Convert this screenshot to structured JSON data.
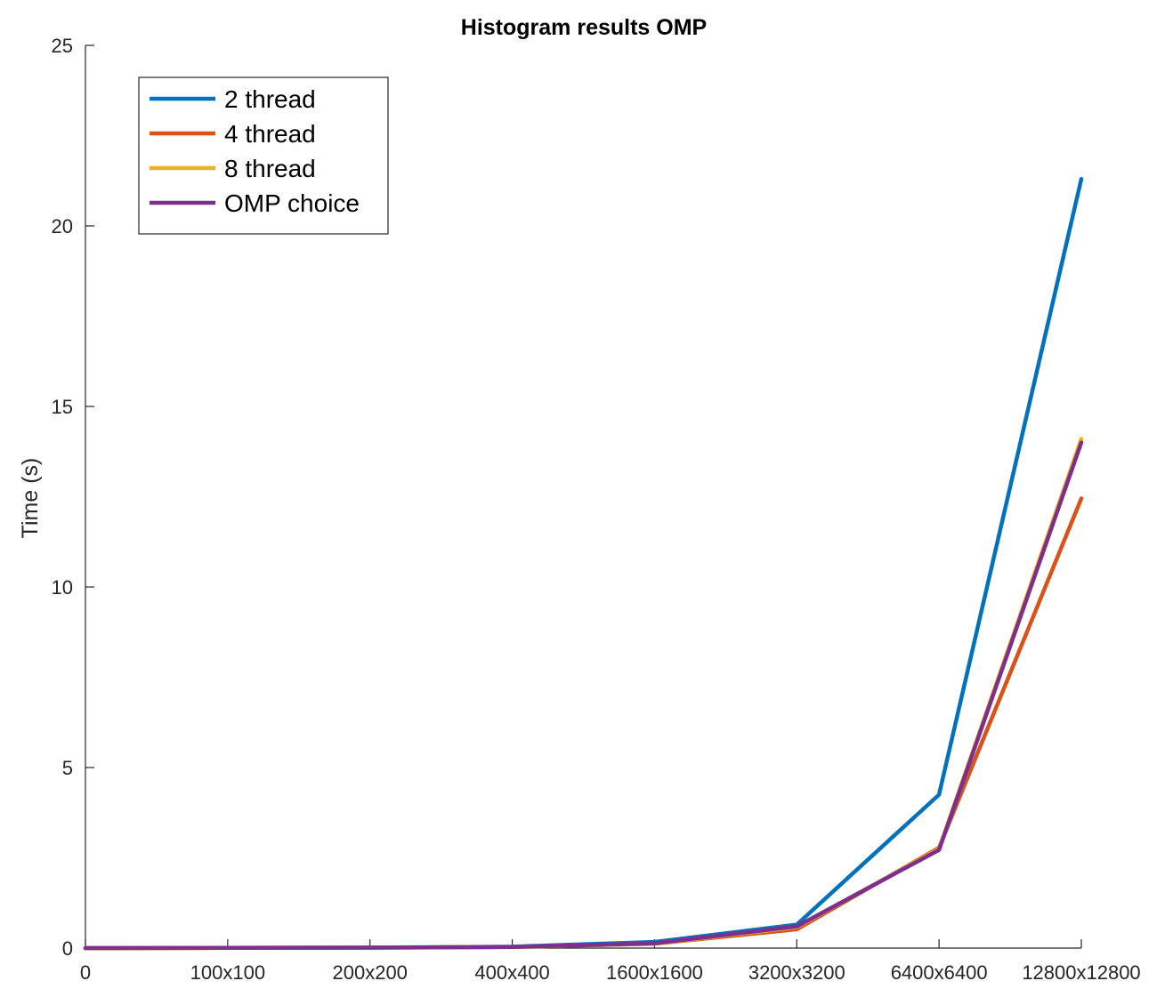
{
  "chart_data": {
    "type": "line",
    "title": "Histogram results OMP",
    "xlabel": "",
    "ylabel": "Time (s)",
    "categories": [
      "0",
      "100x100",
      "200x200",
      "400x400",
      "1600x1600",
      "3200x3200",
      "6400x6400",
      "12800x12800"
    ],
    "yticks": [
      "0",
      "5",
      "10",
      "15",
      "20",
      "25"
    ],
    "ylim": [
      0,
      25
    ],
    "grid": false,
    "legend_position": "top-left",
    "series": [
      {
        "name": "2 thread",
        "color": "#0072BD",
        "values": [
          0,
          0.005,
          0.015,
          0.04,
          0.17,
          0.65,
          4.25,
          21.3
        ]
      },
      {
        "name": "4 thread",
        "color": "#D95319",
        "values": [
          0,
          0.005,
          0.012,
          0.03,
          0.12,
          0.52,
          2.78,
          12.45
        ]
      },
      {
        "name": "8 thread",
        "color": "#EDB120",
        "values": [
          0,
          0.005,
          0.012,
          0.03,
          0.12,
          0.58,
          2.75,
          14.1
        ]
      },
      {
        "name": "OMP choice",
        "color": "#7E2F8E",
        "values": [
          0,
          0.005,
          0.012,
          0.03,
          0.13,
          0.6,
          2.72,
          14.0
        ]
      }
    ]
  }
}
